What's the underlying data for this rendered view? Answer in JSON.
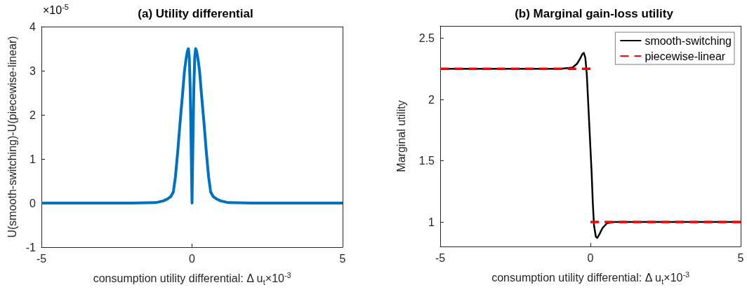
{
  "chart_data": [
    {
      "type": "line",
      "title": "(a) Utility differential",
      "xlabel": "consumption utility differential: Δ u$_{t}$×10$^{-3}$",
      "ylabel": "U(smooth-switching)-U(piecewise-linear)",
      "annotations": [
        "×10$^{-5}$"
      ],
      "x": [
        -5,
        -2,
        -1.2,
        -0.95,
        -0.8,
        -0.7,
        -0.62,
        -0.55,
        -0.47,
        -0.4,
        -0.31,
        -0.25,
        -0.19,
        -0.15,
        -0.12,
        -0.09,
        -0.06,
        -0.04,
        -0.02,
        0,
        0.02,
        0.04,
        0.06,
        0.09,
        0.12,
        0.15,
        0.19,
        0.25,
        0.31,
        0.4,
        0.47,
        0.55,
        0.62,
        0.7,
        0.8,
        0.95,
        1.2,
        2,
        5
      ],
      "series": [
        {
          "color": "#0072bd",
          "line_style": "solid",
          "values": [
            0,
            0,
            0.01,
            0.05,
            0.1,
            0.15,
            0.25,
            0.6,
            1.2,
            1.8,
            2.5,
            3.0,
            3.3,
            3.45,
            3.5,
            3.3,
            2.6,
            1.8,
            0.9,
            0,
            0.9,
            1.8,
            2.6,
            3.3,
            3.5,
            3.45,
            3.3,
            3.0,
            2.5,
            1.8,
            1.2,
            0.6,
            0.25,
            0.15,
            0.1,
            0.05,
            0.01,
            0,
            0
          ]
        }
      ],
      "xlim": [
        -5,
        5
      ],
      "xticks": [
        -5,
        0,
        5
      ],
      "ylim": [
        -1,
        4
      ],
      "yticks": [
        -1,
        0,
        1,
        2,
        3,
        4
      ],
      "grid": false,
      "legend": false,
      "marker": "none"
    },
    {
      "type": "line",
      "title": "(b) Marginal gain-loss utility",
      "xlabel": "consumption utility differential: Δ u$_{t}$×10$^{-3}$",
      "ylabel": "Marginal utility",
      "series": [
        {
          "name": "smooth-switching",
          "color": "#000000",
          "line_style": "solid",
          "x": [
            -5,
            -1,
            -0.6,
            -0.45,
            -0.35,
            -0.27,
            -0.22,
            -0.17,
            -0.12,
            -0.08,
            -0.04,
            0,
            0.04,
            0.08,
            0.12,
            0.18,
            0.23,
            0.3,
            0.4,
            0.55,
            0.8,
            5
          ],
          "values": [
            2.25,
            2.25,
            2.26,
            2.29,
            2.33,
            2.37,
            2.38,
            2.34,
            2.2,
            2.0,
            1.8,
            1.6,
            1.4,
            1.15,
            0.97,
            0.88,
            0.87,
            0.9,
            0.95,
            0.99,
            1.0,
            1.0
          ]
        },
        {
          "name": "piecewise-linear",
          "color": "#ff0000",
          "line_style": "dashed",
          "x": [
            -5,
            0
          ],
          "values": [
            2.25,
            2.25
          ]
        },
        {
          "color": "#ff0000",
          "line_style": "dashed",
          "x": [
            0,
            5
          ],
          "values": [
            1,
            1
          ]
        }
      ],
      "xlim": [
        -5,
        5
      ],
      "xticks": [
        -5,
        0,
        5
      ],
      "ylim": [
        0.8,
        2.6
      ],
      "yticks": [
        1,
        1.5,
        2,
        2.5
      ],
      "grid": false,
      "legend": "top right",
      "marker": "none"
    }
  ]
}
